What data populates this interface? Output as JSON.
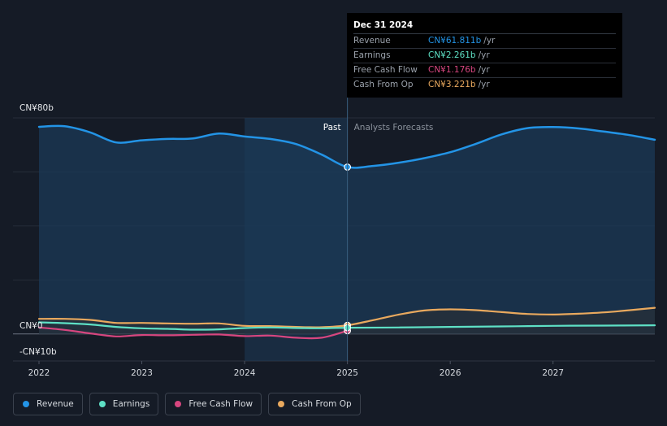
{
  "chart_data": {
    "type": "line",
    "x_ticks": [
      "2022",
      "2023",
      "2024",
      "2025",
      "2026",
      "2027"
    ],
    "xlim": [
      2022.0,
      2027.99
    ],
    "ylim": [
      -10,
      80
    ],
    "y_labels": {
      "top": "CN¥80b",
      "zero": "CN¥0",
      "bottom": "-CN¥10b"
    },
    "past_label": "Past",
    "forecast_label": "Analysts Forecasts",
    "divider_x": 2025.0,
    "highlight_start_x": 2024.0,
    "series": [
      {
        "name": "Revenue",
        "color": "#2394e6",
        "area": true,
        "points": [
          [
            2022.0,
            76.7
          ],
          [
            2022.25,
            76.9
          ],
          [
            2022.5,
            74.6
          ],
          [
            2022.75,
            70.9
          ],
          [
            2023.0,
            71.7
          ],
          [
            2023.25,
            72.2
          ],
          [
            2023.5,
            72.4
          ],
          [
            2023.75,
            74.2
          ],
          [
            2024.0,
            73.1
          ],
          [
            2024.25,
            72.2
          ],
          [
            2024.5,
            70.3
          ],
          [
            2024.75,
            66.4
          ],
          [
            2025.0,
            61.8
          ],
          [
            2025.25,
            62.2
          ],
          [
            2025.5,
            63.4
          ],
          [
            2025.75,
            65.1
          ],
          [
            2026.0,
            67.3
          ],
          [
            2026.25,
            70.4
          ],
          [
            2026.5,
            73.9
          ],
          [
            2026.75,
            76.2
          ],
          [
            2027.0,
            76.6
          ],
          [
            2027.25,
            76.1
          ],
          [
            2027.5,
            74.9
          ],
          [
            2027.75,
            73.6
          ],
          [
            2027.99,
            71.9
          ]
        ]
      },
      {
        "name": "Earnings",
        "color": "#5ee0c5",
        "area": false,
        "points": [
          [
            2022.0,
            4.3
          ],
          [
            2022.25,
            4.0
          ],
          [
            2022.5,
            3.5
          ],
          [
            2022.75,
            2.6
          ],
          [
            2023.0,
            2.1
          ],
          [
            2023.25,
            1.9
          ],
          [
            2023.5,
            1.6
          ],
          [
            2023.75,
            1.7
          ],
          [
            2024.0,
            2.2
          ],
          [
            2024.25,
            2.4
          ],
          [
            2024.5,
            2.2
          ],
          [
            2024.75,
            2.1
          ],
          [
            2025.0,
            2.3
          ],
          [
            2025.5,
            2.4
          ],
          [
            2026.0,
            2.6
          ],
          [
            2026.5,
            2.8
          ],
          [
            2027.0,
            3.0
          ],
          [
            2027.5,
            3.1
          ],
          [
            2027.99,
            3.2
          ]
        ]
      },
      {
        "name": "Free Cash Flow",
        "color": "#d7467f",
        "area": false,
        "points": [
          [
            2022.0,
            2.4
          ],
          [
            2022.25,
            1.5
          ],
          [
            2022.5,
            0.2
          ],
          [
            2022.75,
            -0.9
          ],
          [
            2023.0,
            -0.4
          ],
          [
            2023.25,
            -0.5
          ],
          [
            2023.5,
            -0.3
          ],
          [
            2023.75,
            -0.2
          ],
          [
            2024.0,
            -0.8
          ],
          [
            2024.25,
            -0.6
          ],
          [
            2024.5,
            -1.4
          ],
          [
            2024.75,
            -1.4
          ],
          [
            2025.0,
            1.2
          ]
        ]
      },
      {
        "name": "Cash From Op",
        "color": "#e9a95e",
        "area": false,
        "points": [
          [
            2022.0,
            5.6
          ],
          [
            2022.25,
            5.6
          ],
          [
            2022.5,
            5.2
          ],
          [
            2022.75,
            4.1
          ],
          [
            2023.0,
            4.1
          ],
          [
            2023.25,
            3.9
          ],
          [
            2023.5,
            3.8
          ],
          [
            2023.75,
            3.9
          ],
          [
            2024.0,
            3.0
          ],
          [
            2024.25,
            2.9
          ],
          [
            2024.5,
            2.6
          ],
          [
            2024.75,
            2.5
          ],
          [
            2025.0,
            3.2
          ],
          [
            2025.25,
            5.1
          ],
          [
            2025.5,
            7.2
          ],
          [
            2025.75,
            8.7
          ],
          [
            2026.0,
            9.1
          ],
          [
            2026.25,
            8.8
          ],
          [
            2026.5,
            8.1
          ],
          [
            2026.75,
            7.4
          ],
          [
            2027.0,
            7.2
          ],
          [
            2027.25,
            7.5
          ],
          [
            2027.5,
            8.0
          ],
          [
            2027.75,
            8.8
          ],
          [
            2027.99,
            9.7
          ]
        ]
      }
    ]
  },
  "tooltip": {
    "title": "Dec 31 2024",
    "rows": [
      {
        "label": "Revenue",
        "value": "CN¥61.811b",
        "unit": "/yr",
        "color": "#2394e6"
      },
      {
        "label": "Earnings",
        "value": "CN¥2.261b",
        "unit": "/yr",
        "color": "#5ee0c5"
      },
      {
        "label": "Free Cash Flow",
        "value": "CN¥1.176b",
        "unit": "/yr",
        "color": "#d7467f"
      },
      {
        "label": "Cash From Op",
        "value": "CN¥3.221b",
        "unit": "/yr",
        "color": "#e9a95e"
      }
    ]
  },
  "legend": [
    {
      "label": "Revenue",
      "color": "#2394e6"
    },
    {
      "label": "Earnings",
      "color": "#5ee0c5"
    },
    {
      "label": "Free Cash Flow",
      "color": "#d7467f"
    },
    {
      "label": "Cash From Op",
      "color": "#e9a95e"
    }
  ]
}
